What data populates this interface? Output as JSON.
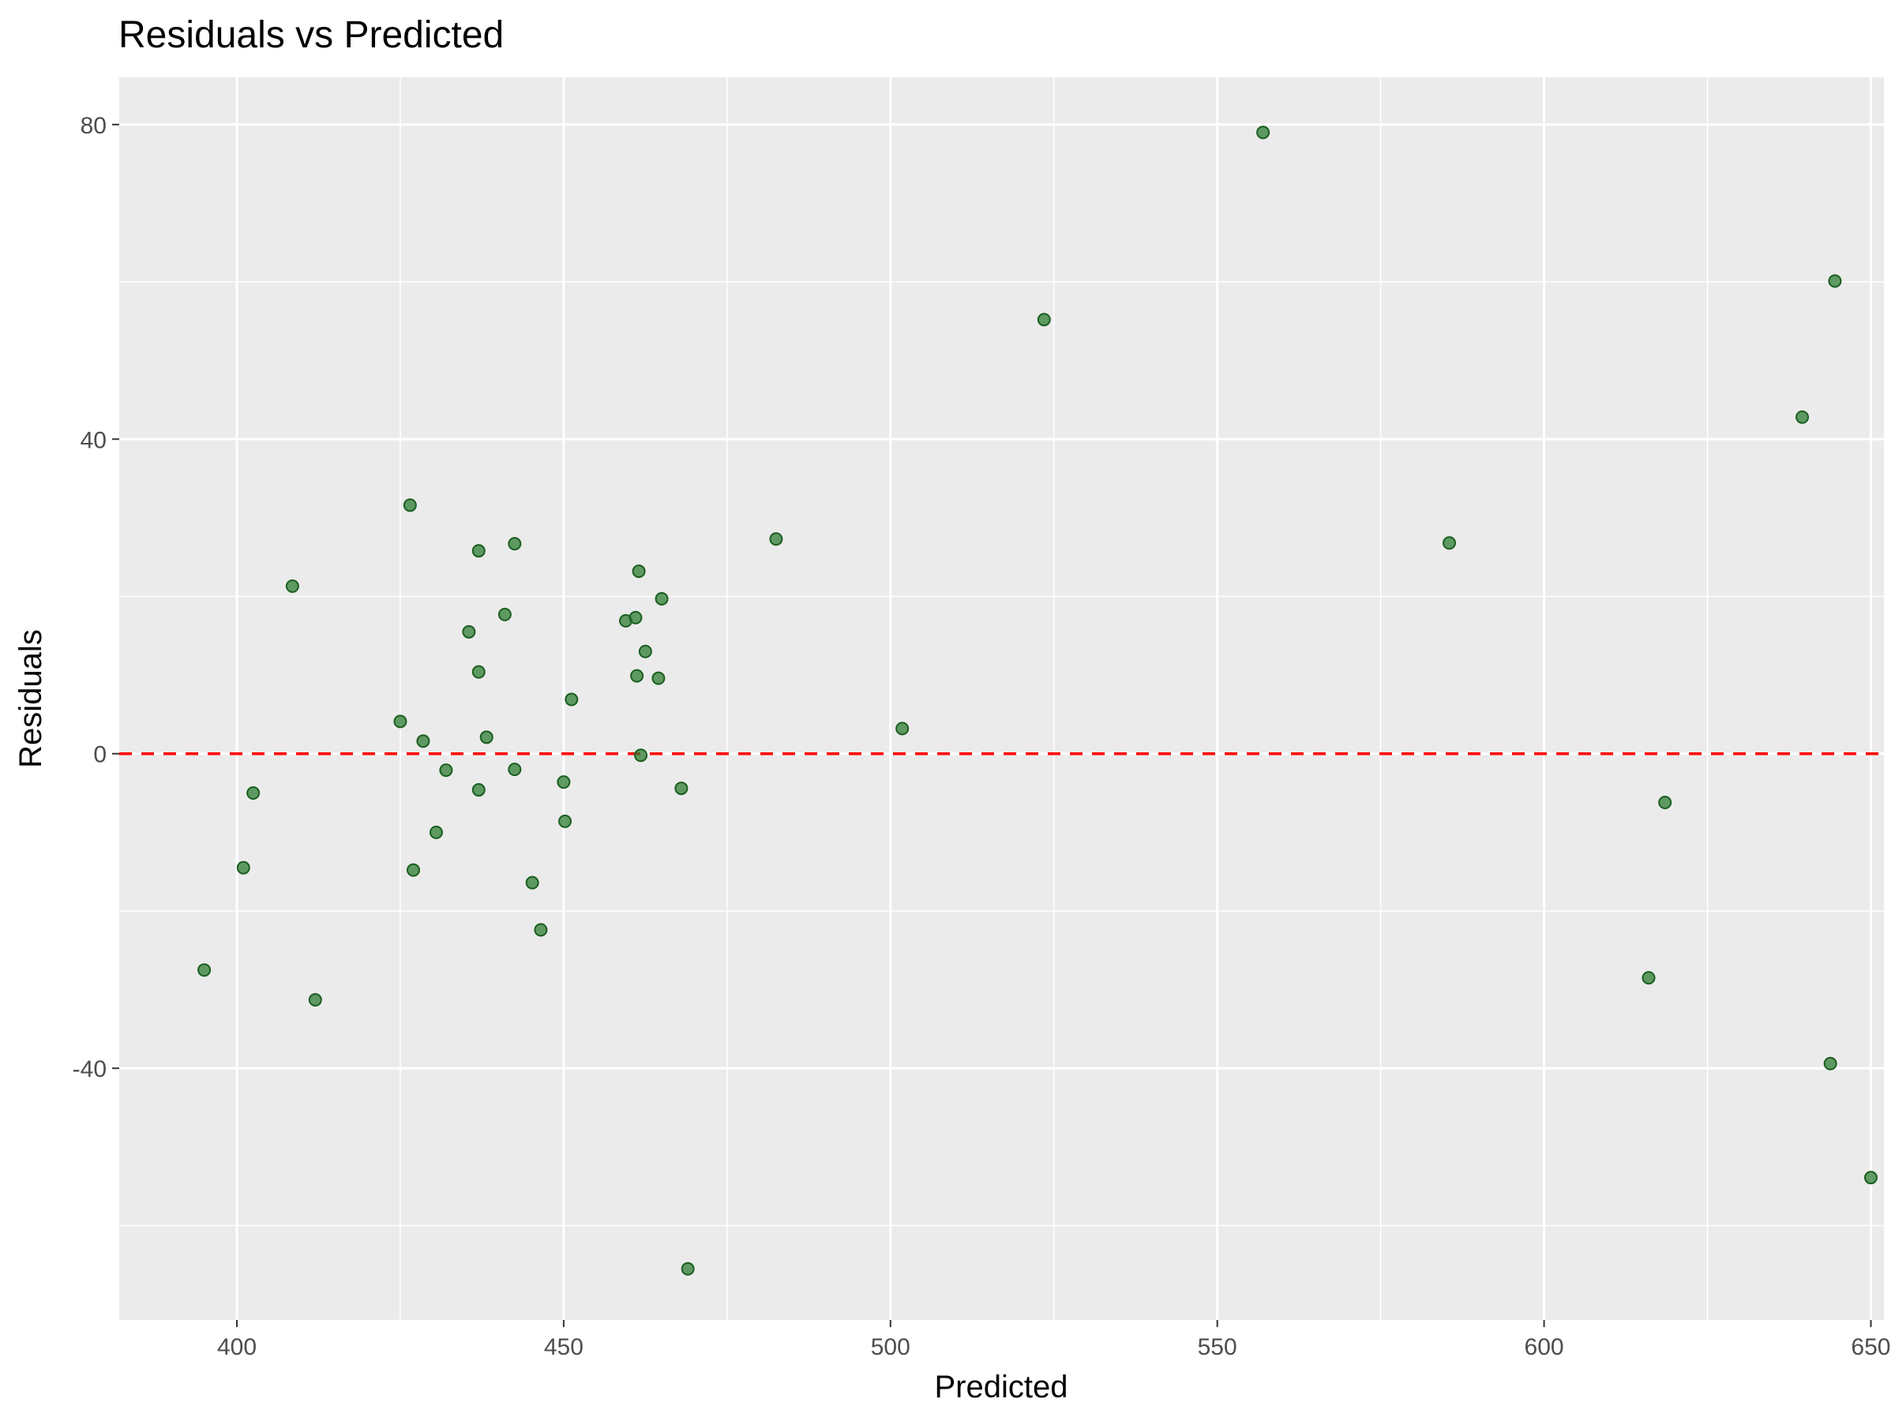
{
  "chart_data": {
    "type": "scatter",
    "title": "Residuals vs Predicted",
    "xlabel": "Predicted",
    "ylabel": "Residuals",
    "xlim": [
      382,
      652
    ],
    "ylim": [
      -72,
      86
    ],
    "x_ticks": [
      400,
      450,
      500,
      550,
      600,
      650
    ],
    "x_tick_labels": [
      "400",
      "450",
      "500",
      "550",
      "600",
      "650"
    ],
    "y_ticks": [
      -40,
      0,
      40,
      80
    ],
    "y_tick_labels": [
      "-40",
      "0",
      "40",
      "80"
    ],
    "grid": true,
    "reference_line": {
      "y": 0,
      "style": "dashed",
      "color": "#ff0000"
    },
    "point_color": "#2e7d32",
    "panel_background": "#ebebeb",
    "points": [
      {
        "x": 395.0,
        "y": -27.5
      },
      {
        "x": 401.0,
        "y": -14.5
      },
      {
        "x": 402.5,
        "y": -5.0
      },
      {
        "x": 408.5,
        "y": 21.3
      },
      {
        "x": 412.0,
        "y": -31.3
      },
      {
        "x": 425.0,
        "y": 4.1
      },
      {
        "x": 426.5,
        "y": 31.6
      },
      {
        "x": 427.0,
        "y": -14.8
      },
      {
        "x": 428.5,
        "y": 1.6
      },
      {
        "x": 430.5,
        "y": -10.0
      },
      {
        "x": 432.0,
        "y": -2.1
      },
      {
        "x": 435.5,
        "y": 15.5
      },
      {
        "x": 437.0,
        "y": 25.8
      },
      {
        "x": 437.0,
        "y": 10.4
      },
      {
        "x": 437.0,
        "y": -4.6
      },
      {
        "x": 438.2,
        "y": 2.1
      },
      {
        "x": 441.0,
        "y": 17.7
      },
      {
        "x": 442.5,
        "y": 26.7
      },
      {
        "x": 442.5,
        "y": -2.0
      },
      {
        "x": 445.2,
        "y": -16.4
      },
      {
        "x": 446.5,
        "y": -22.4
      },
      {
        "x": 450.0,
        "y": -3.6
      },
      {
        "x": 450.2,
        "y": -8.6
      },
      {
        "x": 451.2,
        "y": 6.9
      },
      {
        "x": 459.5,
        "y": 16.9
      },
      {
        "x": 461.0,
        "y": 17.3
      },
      {
        "x": 461.2,
        "y": 9.9
      },
      {
        "x": 461.5,
        "y": 23.2
      },
      {
        "x": 461.8,
        "y": -0.2
      },
      {
        "x": 462.5,
        "y": 13.0
      },
      {
        "x": 464.5,
        "y": 9.6
      },
      {
        "x": 465.0,
        "y": 19.7
      },
      {
        "x": 468.0,
        "y": -4.4
      },
      {
        "x": 469.0,
        "y": -65.5
      },
      {
        "x": 482.5,
        "y": 27.3
      },
      {
        "x": 501.8,
        "y": 3.2
      },
      {
        "x": 523.5,
        "y": 55.2
      },
      {
        "x": 557.0,
        "y": 79.0
      },
      {
        "x": 585.5,
        "y": 26.8
      },
      {
        "x": 616.0,
        "y": -28.5
      },
      {
        "x": 618.5,
        "y": -6.2
      },
      {
        "x": 639.5,
        "y": 42.8
      },
      {
        "x": 643.8,
        "y": -39.4
      },
      {
        "x": 644.5,
        "y": 60.1
      },
      {
        "x": 650.0,
        "y": -53.9
      }
    ]
  }
}
